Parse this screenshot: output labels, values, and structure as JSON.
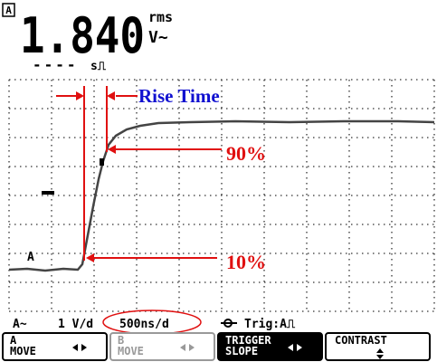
{
  "header": {
    "channel": "A",
    "reading": "1.840",
    "unit_top": "rms",
    "unit_bottom": "V~",
    "range_dashes": "----",
    "range_unit": "s⎍"
  },
  "annotations": {
    "rise_time": "Rise Time",
    "upper": "90%",
    "lower": "10%"
  },
  "trace_marker": "A",
  "status": {
    "coupling": "A~",
    "volts": "1 V/d",
    "time": "500ns/d",
    "trigger": "Trig:A⎍"
  },
  "softkeys": [
    {
      "lines": [
        "A",
        "MOVE"
      ]
    },
    {
      "lines": [
        "B",
        "MOVE"
      ]
    },
    {
      "lines": [
        "TRIGGER",
        "SLOPE"
      ]
    },
    {
      "lines": [
        "CONTRAST"
      ]
    }
  ]
}
